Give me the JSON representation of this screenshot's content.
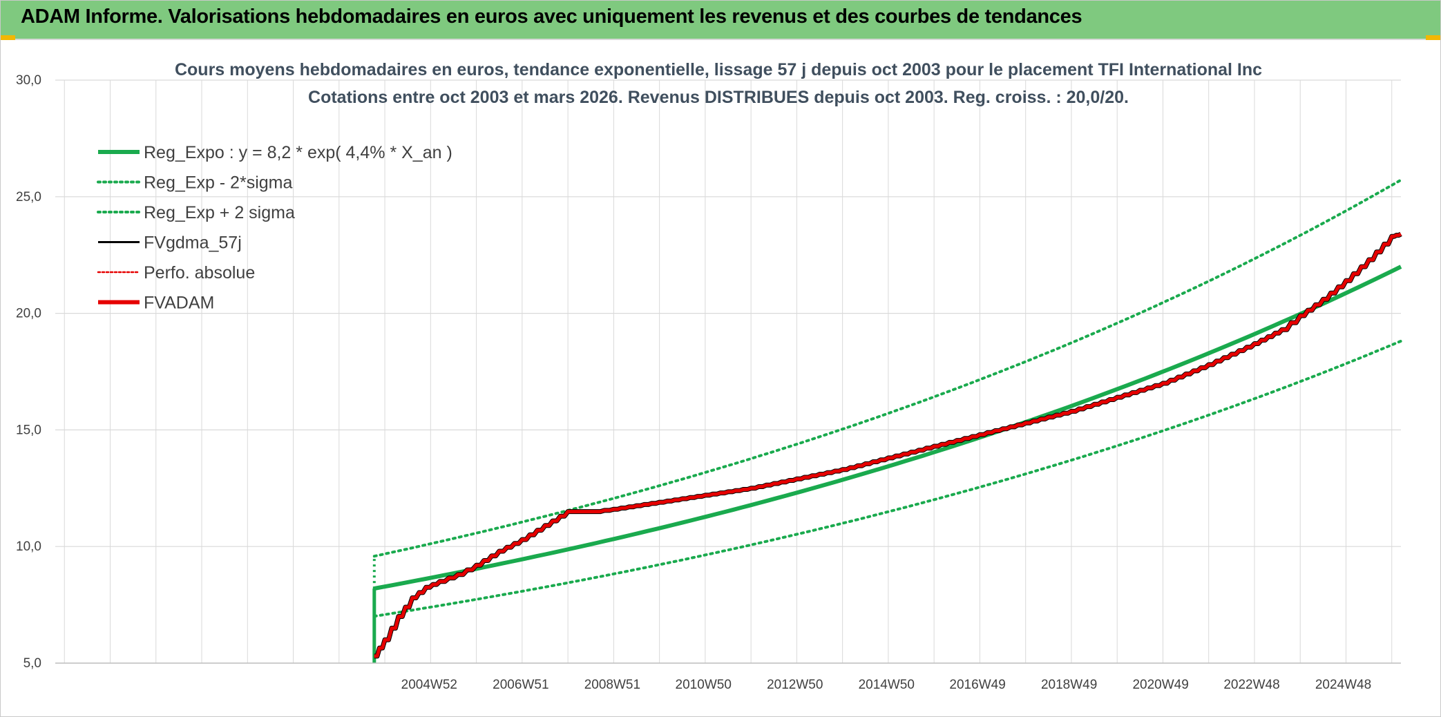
{
  "header": {
    "title": "ADAM Informe. Valorisations hebdomadaires en euros avec uniquement les revenus et des courbes de tendances"
  },
  "colors": {
    "header_bg": "#7fc97f",
    "reg_expo": "#1aaa4e",
    "fvadam": "#e60000",
    "fvgdma": "#000000",
    "perfo": "#e60000",
    "grid": "#d9d9d9",
    "title": "#404f5e"
  },
  "chart_data": {
    "type": "line",
    "title_line1": "Cours moyens hebdomadaires en euros, tendance exponentielle, lissage 57 j depuis oct 2003 pour le placement TFI International Inc",
    "title_line2": "Cotations entre oct 2003 et mars 2026. Revenus DISTRIBUES depuis oct 2003. Reg. croiss. : 20,0/20.",
    "ylim": [
      5,
      30
    ],
    "y_ticks": [
      "5,0",
      "10,0",
      "15,0",
      "20,0",
      "25,0",
      "30,0"
    ],
    "y_tick_values": [
      5,
      10,
      15,
      20,
      25,
      30
    ],
    "x_range_years": [
      1996.8,
      2026.2
    ],
    "x_tick_labels": [
      "2004W52",
      "2006W51",
      "2008W51",
      "2010W50",
      "2012W50",
      "2014W50",
      "2016W49",
      "2018W49",
      "2020W49",
      "2022W48",
      "2024W48"
    ],
    "x_tick_positions": [
      2004.97,
      2006.97,
      2008.97,
      2010.96,
      2012.96,
      2014.96,
      2016.95,
      2018.95,
      2020.95,
      2022.94,
      2024.94
    ],
    "x_grid_years": [
      1997.0,
      1998.0,
      1999.0,
      2000.0,
      2001.0,
      2002.0,
      2003.0,
      2004.0,
      2005.0,
      2006.0,
      2007.0,
      2008.0,
      2009.0,
      2010.0,
      2011.0,
      2012.0,
      2013.0,
      2014.0,
      2015.0,
      2016.0,
      2017.0,
      2018.0,
      2019.0,
      2020.0,
      2021.0,
      2022.0,
      2023.0,
      2024.0,
      2025.0,
      2026.0
    ],
    "legend": [
      {
        "key": "reg_expo",
        "label": "Reg_Expo : y = 8,2 * exp( 4,4% *  X_an )"
      },
      {
        "key": "reg_minus",
        "label": "Reg_Exp - 2*sigma"
      },
      {
        "key": "reg_plus",
        "label": "Reg_Exp + 2 sigma"
      },
      {
        "key": "fvgdma",
        "label": "FVgdma_57j"
      },
      {
        "key": "perfo",
        "label": "Perfo. absolue"
      },
      {
        "key": "fvadam",
        "label": "FVADAM"
      }
    ],
    "regression": {
      "a": 8.2,
      "rate": 0.044,
      "start_year": 2003.77,
      "end_year": 2026.2,
      "lower_factor": 0.855,
      "upper_factor": 1.169
    },
    "series": [
      {
        "name": "FVADAM",
        "x": [
          2003.77,
          2004.0,
          2004.3,
          2004.6,
          2004.9,
          2005.2,
          2005.6,
          2006.0,
          2006.5,
          2007.0,
          2007.5,
          2008.0,
          2008.3,
          2008.6,
          2009.0,
          2010.0,
          2011.0,
          2012.0,
          2013.0,
          2014.0,
          2015.0,
          2016.0,
          2017.0,
          2018.0,
          2019.0,
          2020.0,
          2021.0,
          2022.0,
          2023.0,
          2023.6,
          2024.0,
          2024.5,
          2025.0,
          2025.5,
          2026.0,
          2026.2
        ],
        "y": [
          5.3,
          6.0,
          7.0,
          7.8,
          8.25,
          8.5,
          8.8,
          9.2,
          9.8,
          10.3,
          10.9,
          11.5,
          11.5,
          11.5,
          11.6,
          11.9,
          12.2,
          12.5,
          12.9,
          13.3,
          13.8,
          14.3,
          14.8,
          15.3,
          15.8,
          16.4,
          17.0,
          17.8,
          18.7,
          19.3,
          19.9,
          20.6,
          21.4,
          22.3,
          23.3,
          23.4
        ]
      }
    ]
  }
}
